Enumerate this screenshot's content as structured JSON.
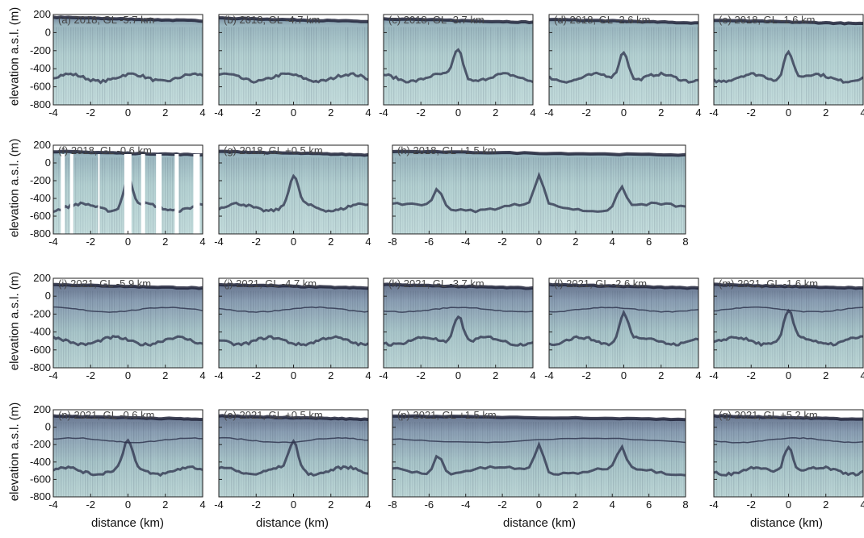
{
  "figure": {
    "ylabel": "elevation a.s.l. (m)",
    "xlabel": "distance (km)",
    "yticks": [
      "200",
      "0",
      "-200",
      "-400",
      "-600",
      "-800"
    ],
    "xticks_narrow": [
      "-4",
      "-2",
      "0",
      "2",
      "4"
    ],
    "xticks_wide": [
      "-8",
      "-6",
      "-4",
      "-2",
      "0",
      "2",
      "4",
      "6",
      "8"
    ],
    "colors": {
      "background": "#b8d6d6",
      "dark": "#2b2f4a",
      "surface": "#1f2238"
    }
  },
  "chart_data": [
    {
      "type": "heatmap",
      "title": "(a) 2018, GL -5.7 km",
      "xlim": [
        -4,
        4
      ],
      "ylim": [
        -800,
        200
      ]
    },
    {
      "type": "heatmap",
      "title": "(b) 2018, GL -4.7 km",
      "xlim": [
        -4,
        4
      ],
      "ylim": [
        -800,
        200
      ]
    },
    {
      "type": "heatmap",
      "title": "(c) 2018, GL -3.7 km",
      "xlim": [
        -4,
        4
      ],
      "ylim": [
        -800,
        200
      ]
    },
    {
      "type": "heatmap",
      "title": "(d) 2018, GL -2.6 km",
      "xlim": [
        -4,
        4
      ],
      "ylim": [
        -800,
        200
      ]
    },
    {
      "type": "heatmap",
      "title": "(e) 2018, GL -1.6 km",
      "xlim": [
        -4,
        4
      ],
      "ylim": [
        -800,
        200
      ]
    },
    {
      "type": "heatmap",
      "title": "(f) 2018, GL -0.6 km",
      "xlim": [
        -4,
        4
      ],
      "ylim": [
        -800,
        200
      ]
    },
    {
      "type": "heatmap",
      "title": "(g) 2018, GL +0.5 km",
      "xlim": [
        -4,
        4
      ],
      "ylim": [
        -800,
        200
      ]
    },
    {
      "type": "heatmap",
      "title": "(h) 2018, GL +1.5 km",
      "xlim": [
        -8,
        8
      ],
      "ylim": [
        -800,
        200
      ]
    },
    {
      "type": "heatmap",
      "title": "(i) 2021, GL -5.9 km",
      "xlim": [
        -4,
        4
      ],
      "ylim": [
        -800,
        200
      ]
    },
    {
      "type": "heatmap",
      "title": "(j) 2021, GL -4.7 km",
      "xlim": [
        -4,
        4
      ],
      "ylim": [
        -800,
        200
      ]
    },
    {
      "type": "heatmap",
      "title": "(k) 2021, GL -3.7 km",
      "xlim": [
        -4,
        4
      ],
      "ylim": [
        -800,
        200
      ]
    },
    {
      "type": "heatmap",
      "title": "(l) 2021, GL -2.6 km",
      "xlim": [
        -4,
        4
      ],
      "ylim": [
        -800,
        200
      ]
    },
    {
      "type": "heatmap",
      "title": "(m) 2021, GL -1.6 km",
      "xlim": [
        -4,
        4
      ],
      "ylim": [
        -800,
        200
      ]
    },
    {
      "type": "heatmap",
      "title": "(n) 2021, GL -0.6 km",
      "xlim": [
        -4,
        4
      ],
      "ylim": [
        -800,
        200
      ]
    },
    {
      "type": "heatmap",
      "title": "(o) 2021, GL +0.5 km",
      "xlim": [
        -4,
        4
      ],
      "ylim": [
        -800,
        200
      ]
    },
    {
      "type": "heatmap",
      "title": "(p) 2021, GL +1.5 km",
      "xlim": [
        -8,
        8
      ],
      "ylim": [
        -800,
        200
      ]
    },
    {
      "type": "heatmap",
      "title": "(q) 2021, GL +5.2 km",
      "xlim": [
        -4,
        4
      ],
      "ylim": [
        -800,
        200
      ]
    }
  ]
}
